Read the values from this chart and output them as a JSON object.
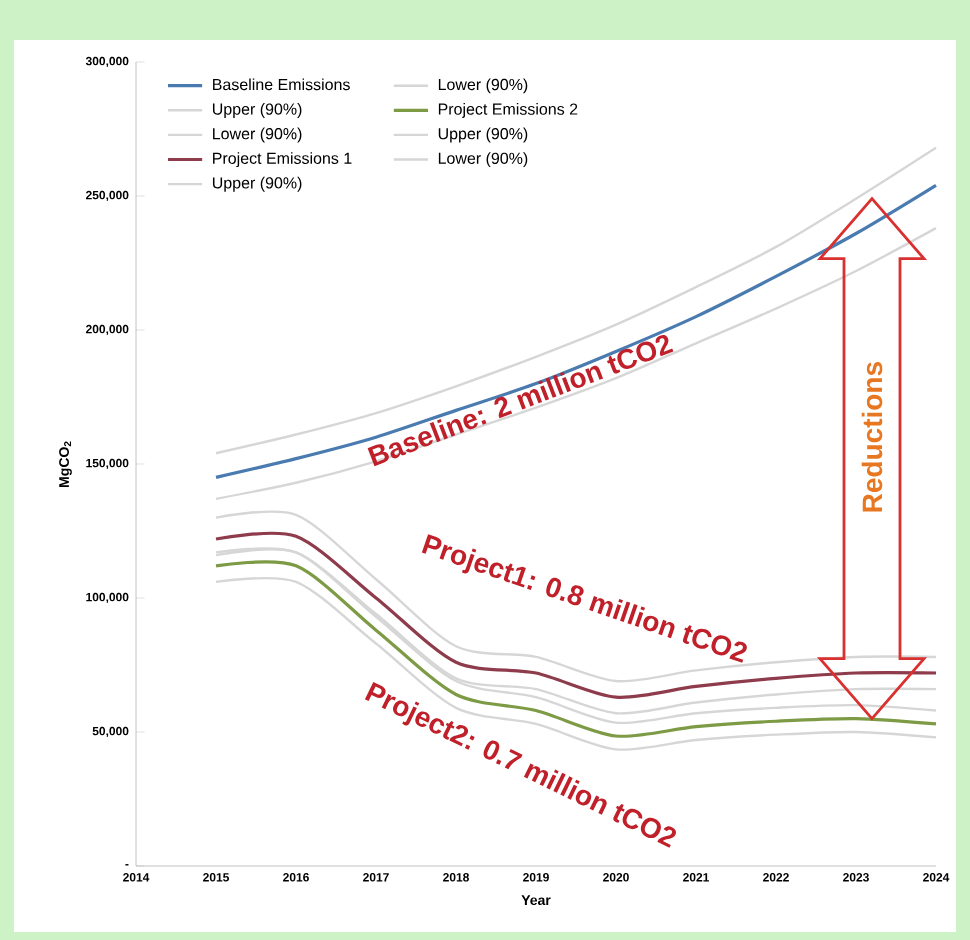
{
  "chart_data": {
    "type": "line",
    "xlabel": "Year",
    "ylabel": "MgCO$_{2}$",
    "x": [
      2015,
      2016,
      2017,
      2018,
      2019,
      2020,
      2021,
      2022,
      2023,
      2024
    ],
    "series": [
      {
        "name": "Baseline Emissions",
        "color": "#4a7bb0",
        "values": [
          145000,
          152000,
          160000,
          170000,
          180000,
          192000,
          205000,
          220000,
          236000,
          254000
        ]
      },
      {
        "name": "Upper (90%)",
        "color": "#d6d6d6",
        "values": [
          154000,
          161000,
          169000,
          179000,
          190000,
          202000,
          216000,
          231000,
          249000,
          268000
        ]
      },
      {
        "name": "Lower (90%)",
        "color": "#d6d6d6",
        "values": [
          137000,
          143000,
          151000,
          161000,
          171000,
          182000,
          195000,
          208000,
          222000,
          238000
        ]
      },
      {
        "name": "Project Emissions 1",
        "color": "#8e3b4b",
        "values": [
          122000,
          123000,
          100000,
          76000,
          72000,
          63000,
          67000,
          70000,
          72000,
          72000
        ]
      },
      {
        "name": "Upper (90%)",
        "color": "#d6d6d6",
        "values": [
          130000,
          131000,
          107000,
          82000,
          78000,
          69000,
          73000,
          76000,
          78000,
          78000
        ]
      },
      {
        "name": "Lower (90%)",
        "color": "#d6d6d6",
        "values": [
          116000,
          117000,
          94000,
          70000,
          66000,
          57000,
          61000,
          64000,
          66000,
          66000
        ]
      },
      {
        "name": "Project Emissions 2",
        "color": "#7d9a45",
        "values": [
          112000,
          112000,
          88000,
          64000,
          58000,
          48500,
          52000,
          54000,
          55000,
          53000
        ]
      },
      {
        "name": "Upper (90%)",
        "color": "#d6d6d6",
        "values": [
          117000,
          117000,
          93000,
          69000,
          63000,
          53500,
          57000,
          59000,
          60000,
          58000
        ]
      },
      {
        "name": "Lower (90%)",
        "color": "#d6d6d6",
        "values": [
          106000,
          106000,
          83000,
          59000,
          53000,
          43500,
          47000,
          49000,
          50000,
          48000
        ]
      }
    ],
    "xlim": [
      2014,
      2024
    ],
    "ylim": [
      0,
      300000
    ],
    "xticks": [
      2014,
      2015,
      2016,
      2017,
      2018,
      2019,
      2020,
      2021,
      2022,
      2023,
      2024
    ],
    "yticks": [
      {
        "value": 0,
        "label": "-"
      },
      {
        "value": 50000,
        "label": "50,000"
      },
      {
        "value": 100000,
        "label": "100,000"
      },
      {
        "value": 150000,
        "label": "150,000"
      },
      {
        "value": 200000,
        "label": "200,000"
      },
      {
        "value": 250000,
        "label": "250,000"
      },
      {
        "value": 300000,
        "label": "300,000"
      }
    ],
    "annotations": [
      {
        "text": "Baseline: 2 million tCO2",
        "x": 2018.8,
        "y": 174000
      },
      "Project1: 0.8 million tCO2",
      "Project2: 0.7 million tCO2",
      "Reductions"
    ],
    "grid": false,
    "legend": "top left",
    "marker": "none",
    "line_style": "solid"
  }
}
